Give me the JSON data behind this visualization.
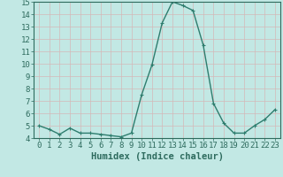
{
  "x": [
    0,
    1,
    2,
    3,
    4,
    5,
    6,
    7,
    8,
    9,
    10,
    11,
    12,
    13,
    14,
    15,
    16,
    17,
    18,
    19,
    20,
    21,
    22,
    23
  ],
  "y": [
    5.0,
    4.7,
    4.3,
    4.8,
    4.4,
    4.4,
    4.3,
    4.2,
    4.1,
    4.4,
    7.5,
    9.9,
    13.3,
    15.0,
    14.7,
    14.3,
    11.5,
    6.8,
    5.2,
    4.4,
    4.4,
    5.0,
    5.5,
    6.3
  ],
  "line_color": "#2e7d6e",
  "marker": "+",
  "bg_color": "#c2e8e4",
  "grid_color": "#d4b8b8",
  "xlabel": "Humidex (Indice chaleur)",
  "ylim": [
    4,
    15
  ],
  "xlim": [
    -0.5,
    23.5
  ],
  "yticks": [
    4,
    5,
    6,
    7,
    8,
    9,
    10,
    11,
    12,
    13,
    14,
    15
  ],
  "xticks": [
    0,
    1,
    2,
    3,
    4,
    5,
    6,
    7,
    8,
    9,
    10,
    11,
    12,
    13,
    14,
    15,
    16,
    17,
    18,
    19,
    20,
    21,
    22,
    23
  ],
  "font_color": "#2e6b5e",
  "axis_color": "#2e6b5e",
  "font_size": 6.5,
  "label_font_size": 7.5,
  "marker_size": 3,
  "linewidth": 1.0
}
